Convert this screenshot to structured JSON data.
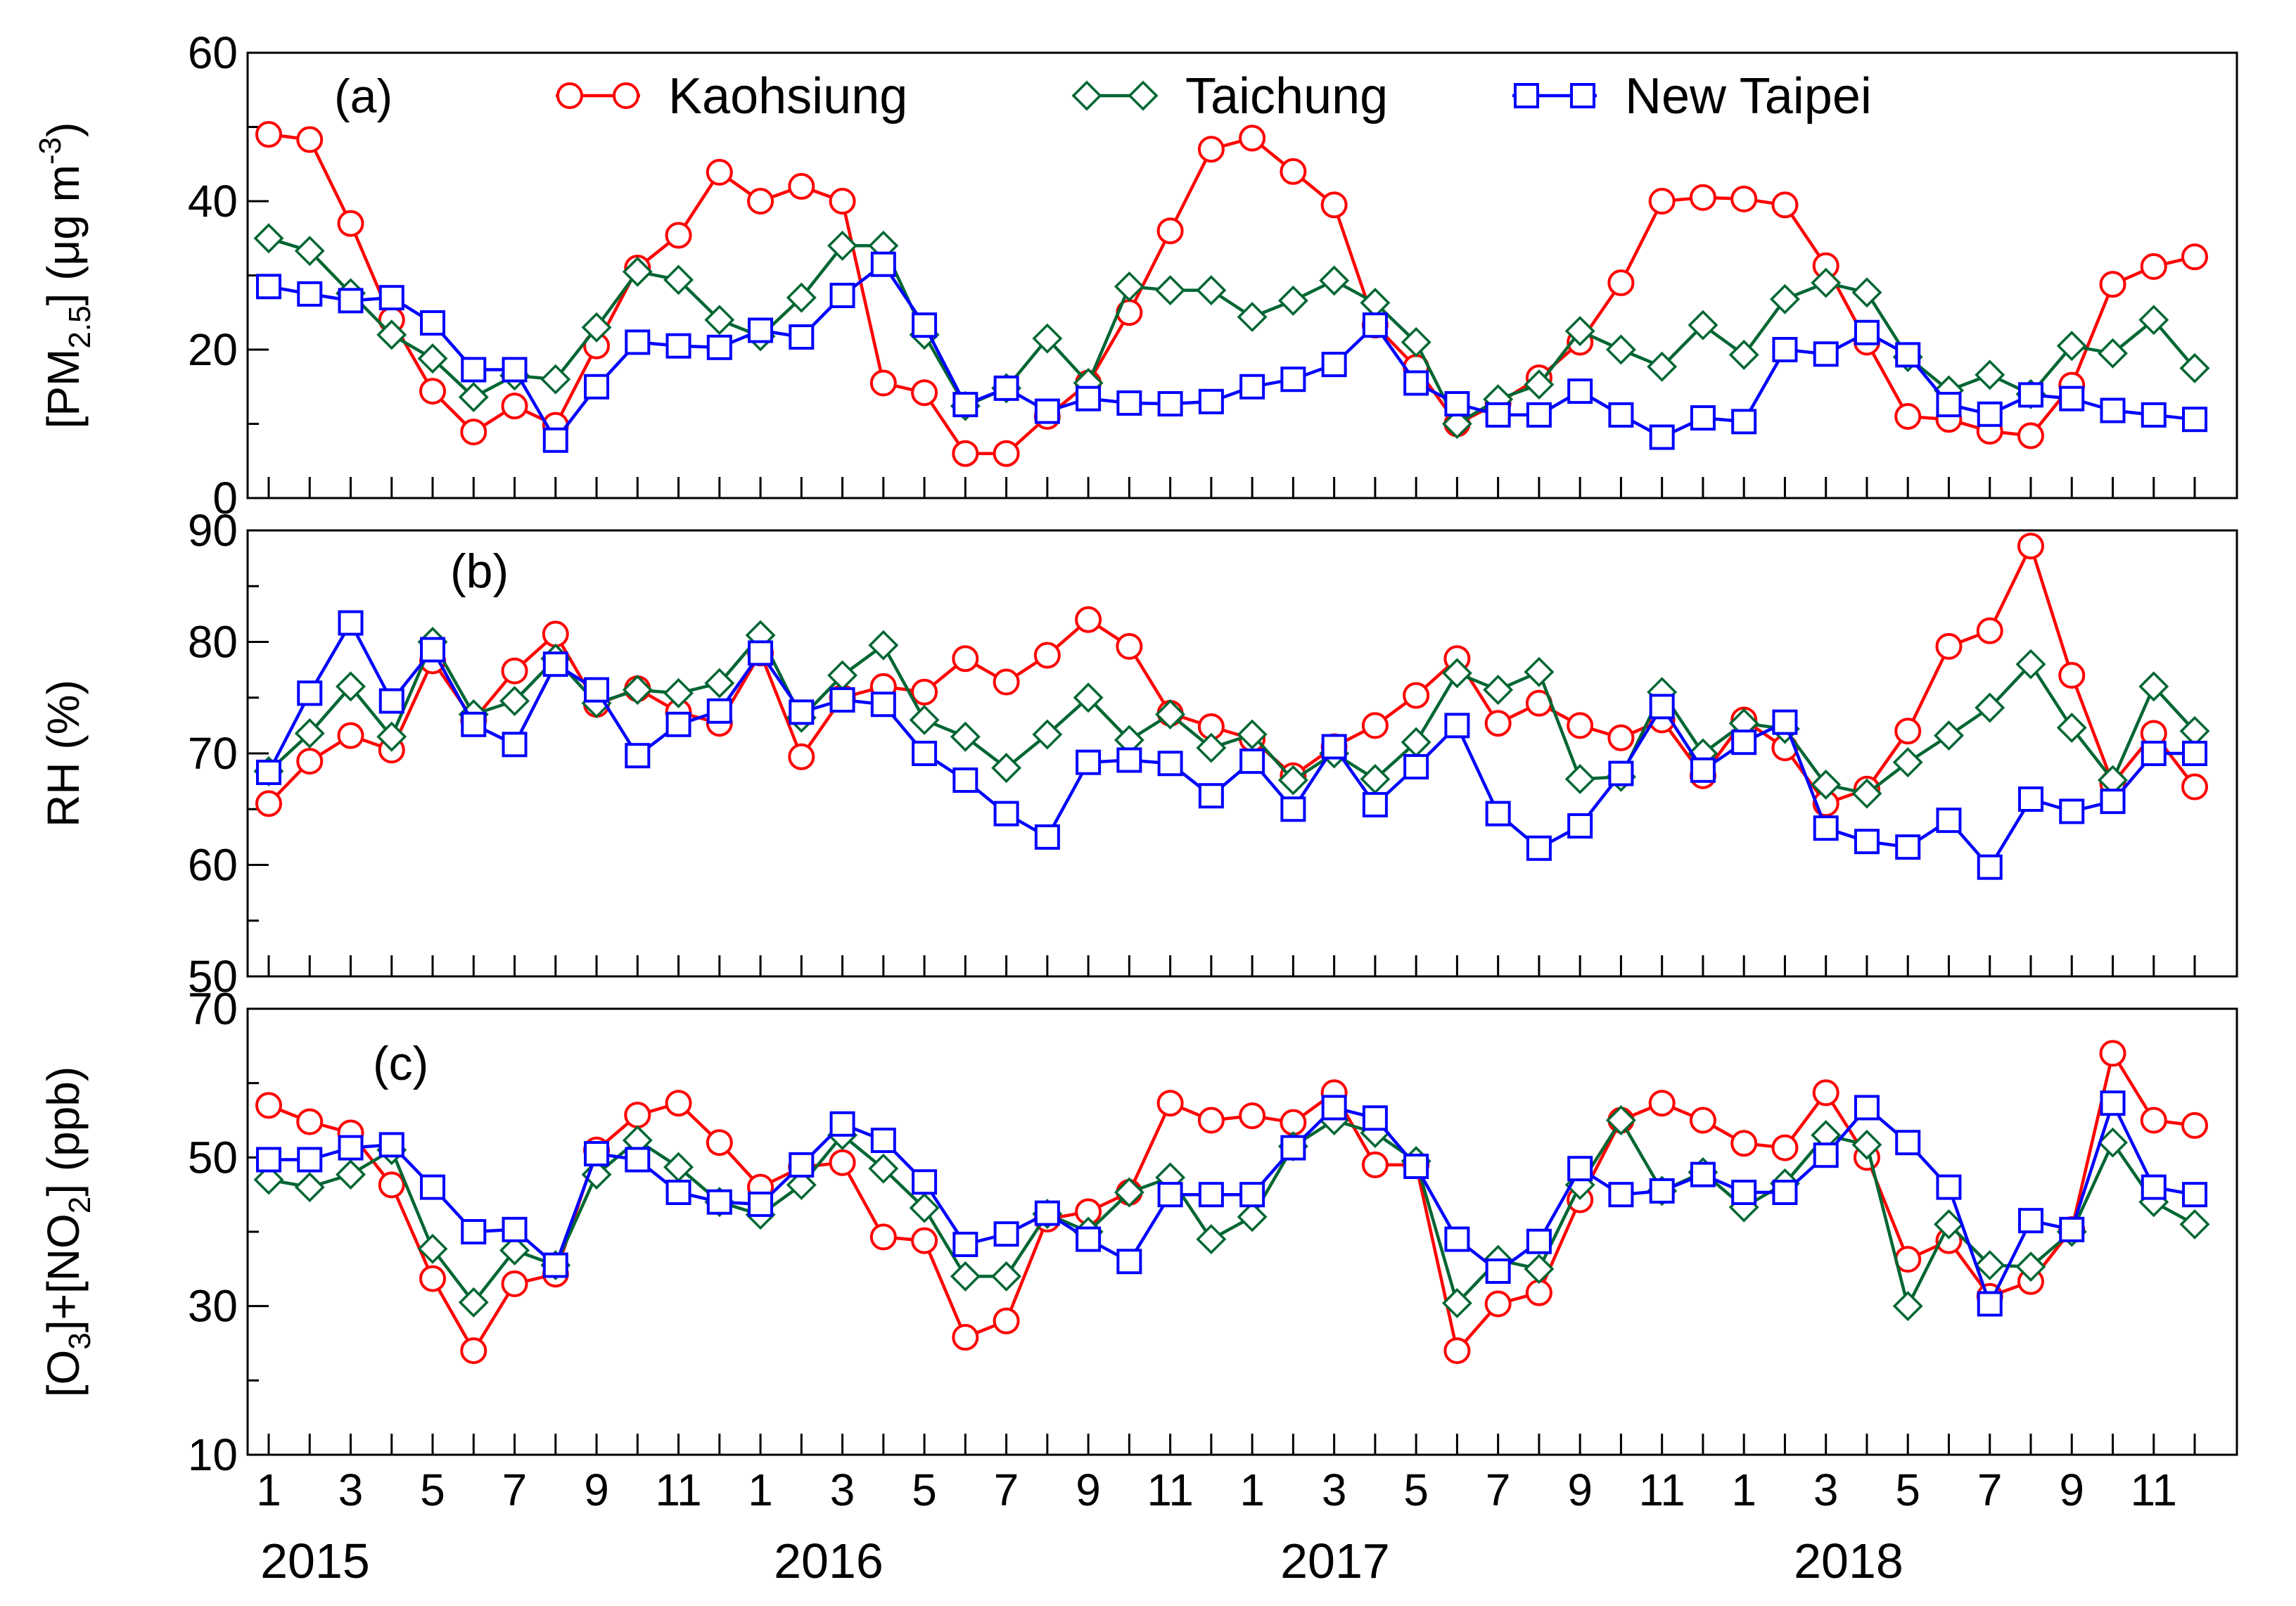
{
  "chart_data": {
    "type": "line",
    "x_tick_labels": [
      "1",
      "3",
      "5",
      "7",
      "9",
      "11",
      "1",
      "3",
      "5",
      "7",
      "9",
      "11",
      "1",
      "3",
      "5",
      "7",
      "9",
      "11",
      "1",
      "3",
      "5",
      "7",
      "9",
      "11"
    ],
    "years": [
      "2015",
      "2016",
      "2017",
      "2018"
    ],
    "months_count": 48,
    "legend": [
      {
        "name": "Kaohsiung",
        "color": "#ff0000",
        "marker": "circle"
      },
      {
        "name": "Taichung",
        "color": "#006633",
        "marker": "diamond"
      },
      {
        "name": "New Taipei",
        "color": "#0000ff",
        "marker": "square"
      }
    ],
    "panels": [
      {
        "panel_label": "(a)",
        "ylabel": "[PM2.5] (μg m-3)",
        "ylim": [
          0,
          60
        ],
        "yticks": [
          "0",
          "20",
          "40",
          "60"
        ],
        "series": [
          {
            "name": "Kaohsiung",
            "values": [
              49,
              48.3,
              37,
              24,
              14.4,
              8.9,
              12.4,
              9.8,
              20.5,
              31,
              35.4,
              43.9,
              40,
              42,
              40,
              15.5,
              14.2,
              6,
              6,
              11,
              15.5,
              25,
              36,
              47,
              48.5,
              44,
              39.5,
              23.3,
              17.6,
              10,
              12.8,
              16.2,
              21,
              29,
              40,
              40.5,
              40.3,
              39.5,
              31.3,
              21,
              11,
              10.6,
              9,
              8.4,
              15.2,
              28.8,
              31.2,
              32.5
            ]
          },
          {
            "name": "Taichung",
            "values": [
              35,
              33.3,
              27.6,
              22,
              18.8,
              13.6,
              16.5,
              16,
              23,
              30.5,
              29.4,
              24,
              21.8,
              27,
              34,
              34,
              22,
              12.4,
              14.8,
              21.5,
              15.5,
              28.5,
              28,
              28,
              24.4,
              26.6,
              29.3,
              26.3,
              21,
              10,
              13.3,
              15.3,
              22.5,
              20,
              17.7,
              23.3,
              19.3,
              26.8,
              29,
              27.7,
              19,
              14.5,
              16.6,
              14,
              20.5,
              19.5,
              24,
              17.5
            ]
          },
          {
            "name": "New Taipei",
            "values": [
              28.5,
              27.5,
              26.6,
              27,
              23.6,
              17.3,
              17.3,
              7.8,
              15,
              21,
              20.5,
              20.3,
              22.6,
              21.7,
              27.3,
              31.5,
              23.3,
              12.6,
              14.8,
              11.7,
              13.4,
              12.8,
              12.7,
              13,
              15,
              16,
              18,
              23.3,
              15.5,
              12.7,
              11.2,
              11.2,
              14.4,
              11.2,
              8.2,
              10.8,
              10.3,
              20,
              19.4,
              22.3,
              19.3,
              12.6,
              11.3,
              13.9,
              13.4,
              11.8,
              11.2,
              10.6
            ]
          }
        ]
      },
      {
        "panel_label": "(b)",
        "ylabel": "RH (%)",
        "ylim": [
          50,
          90
        ],
        "yticks": [
          "50",
          "60",
          "70",
          "80",
          "90"
        ],
        "series": [
          {
            "name": "Kaohsiung",
            "values": [
              65.5,
              69.3,
              71.6,
              70.3,
              78.3,
              73,
              77.4,
              80.7,
              74.4,
              75.8,
              73.7,
              72.7,
              79,
              69.7,
              75,
              76,
              75.5,
              78.5,
              76.4,
              78.8,
              82,
              79.6,
              73.6,
              72.4,
              71.3,
              68,
              70.6,
              72.5,
              75.2,
              78.5,
              72.7,
              74.5,
              72.5,
              71.4,
              73,
              68,
              73,
              70.5,
              65.5,
              66.8,
              72,
              79.6,
              81,
              88.6,
              77,
              67.3,
              71.8,
              67
            ]
          },
          {
            "name": "Taichung",
            "values": [
              68.4,
              71.8,
              76,
              71.5,
              80,
              73.5,
              74.7,
              78.5,
              74.5,
              75.7,
              75.4,
              76.3,
              80.6,
              73.2,
              77,
              79.7,
              73,
              71.5,
              68.7,
              71.7,
              75,
              71.2,
              73.5,
              70.5,
              71.7,
              67.6,
              70,
              67.7,
              71,
              77.2,
              75.7,
              77.3,
              67.7,
              67.9,
              75.5,
              70,
              72.7,
              72.2,
              67.2,
              66.4,
              69.2,
              71.6,
              74.1,
              78,
              72.3,
              67.6,
              76,
              72
            ]
          },
          {
            "name": "New Taipei",
            "values": [
              68.3,
              75.4,
              81.7,
              74.7,
              79.3,
              72.6,
              70.8,
              78,
              75.7,
              69.8,
              72.6,
              73.8,
              79,
              73.7,
              74.8,
              74.4,
              70,
              67.6,
              64.6,
              62.5,
              69.2,
              69.4,
              69.1,
              66.2,
              69.3,
              65,
              70.6,
              65.4,
              68.8,
              72.5,
              64.6,
              61.5,
              63.5,
              68.2,
              74.2,
              68.5,
              71,
              72.8,
              63.3,
              62.1,
              61.6,
              64,
              59.8,
              65.9,
              64.8,
              65.7,
              70,
              70
            ]
          }
        ]
      },
      {
        "panel_label": "(c)",
        "ylabel": "[O3]+[NO2] (ppb)",
        "ylim": [
          10,
          70
        ],
        "yticks": [
          "10",
          "30",
          "50",
          "70"
        ],
        "series": [
          {
            "name": "Kaohsiung",
            "values": [
              57,
              54.8,
              53.3,
              46.3,
              33.7,
              24,
              33,
              34.3,
              51,
              55.7,
              57.3,
              52,
              46,
              48.7,
              49.3,
              39.3,
              38.8,
              25.8,
              28,
              41.7,
              42.7,
              45.3,
              57.3,
              55,
              55.6,
              54.7,
              58.7,
              49,
              49,
              24,
              30.3,
              31.8,
              44.3,
              55,
              57.3,
              55,
              51.9,
              51.3,
              58.7,
              50,
              36.3,
              38.8,
              31.3,
              33.3,
              40.3,
              64,
              55,
              54.3
            ]
          },
          {
            "name": "Taichung",
            "values": [
              47,
              46,
              47.7,
              51,
              37.7,
              30.5,
              37.5,
              35.5,
              47.7,
              52.3,
              48.7,
              44,
              42.3,
              46.3,
              53,
              48.5,
              43.2,
              34,
              34,
              42.4,
              40,
              45.3,
              47.3,
              39,
              42,
              51.5,
              55,
              53.3,
              49.5,
              30.4,
              36.2,
              35,
              46.3,
              55,
              45.5,
              48,
              43.3,
              46.5,
              53,
              51.7,
              30,
              41,
              35.5,
              35.3,
              40,
              52,
              44,
              41
            ]
          },
          {
            "name": "New Taipei",
            "values": [
              49.7,
              49.7,
              51.3,
              51.7,
              46,
              40,
              40.3,
              35.5,
              50.5,
              49.7,
              45.3,
              44,
              43.7,
              49,
              54.5,
              52.3,
              46.7,
              38.3,
              39.7,
              42.5,
              39,
              36,
              45,
              45,
              45,
              51.3,
              56.7,
              55.3,
              48.8,
              39,
              34.7,
              38.7,
              48.5,
              45,
              45.5,
              47.7,
              45.3,
              45.3,
              50.3,
              56.7,
              52,
              46,
              30.3,
              41.5,
              40.3,
              57.3,
              46,
              45
            ]
          }
        ]
      }
    ]
  }
}
